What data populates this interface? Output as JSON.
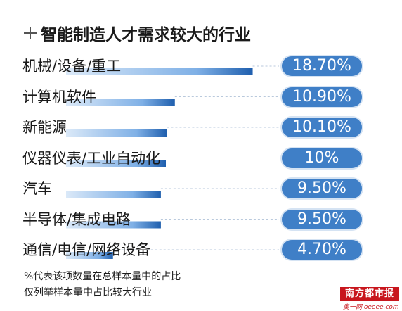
{
  "title": "智能制造人才需求较大的行业",
  "chart_data": {
    "type": "bar",
    "orientation": "horizontal",
    "unit": "%",
    "categories": [
      "机械/设备/重工",
      "计算机软件",
      "新能源",
      "仪器仪表/工业自动化",
      "汽车",
      "半导体/集成电路",
      "通信/电信/网络设备"
    ],
    "values": [
      18.7,
      10.9,
      10.1,
      10,
      9.5,
      9.5,
      4.7
    ],
    "value_labels": [
      "18.70%",
      "10.90%",
      "10.10%",
      "10%",
      "9.50%",
      "9.50%",
      "4.70%"
    ],
    "colors": {
      "pill": "#3f7fc7",
      "bar_dark": "#1f5fae",
      "bar_light": "#dbe9f8"
    }
  },
  "footnotes": [
    "%代表该项数量在总样本量中的占比",
    "仅列举样本量中占比较大行业"
  ],
  "logo": {
    "text": "南方都市报",
    "sub": "奥一网 oeeee.com"
  }
}
